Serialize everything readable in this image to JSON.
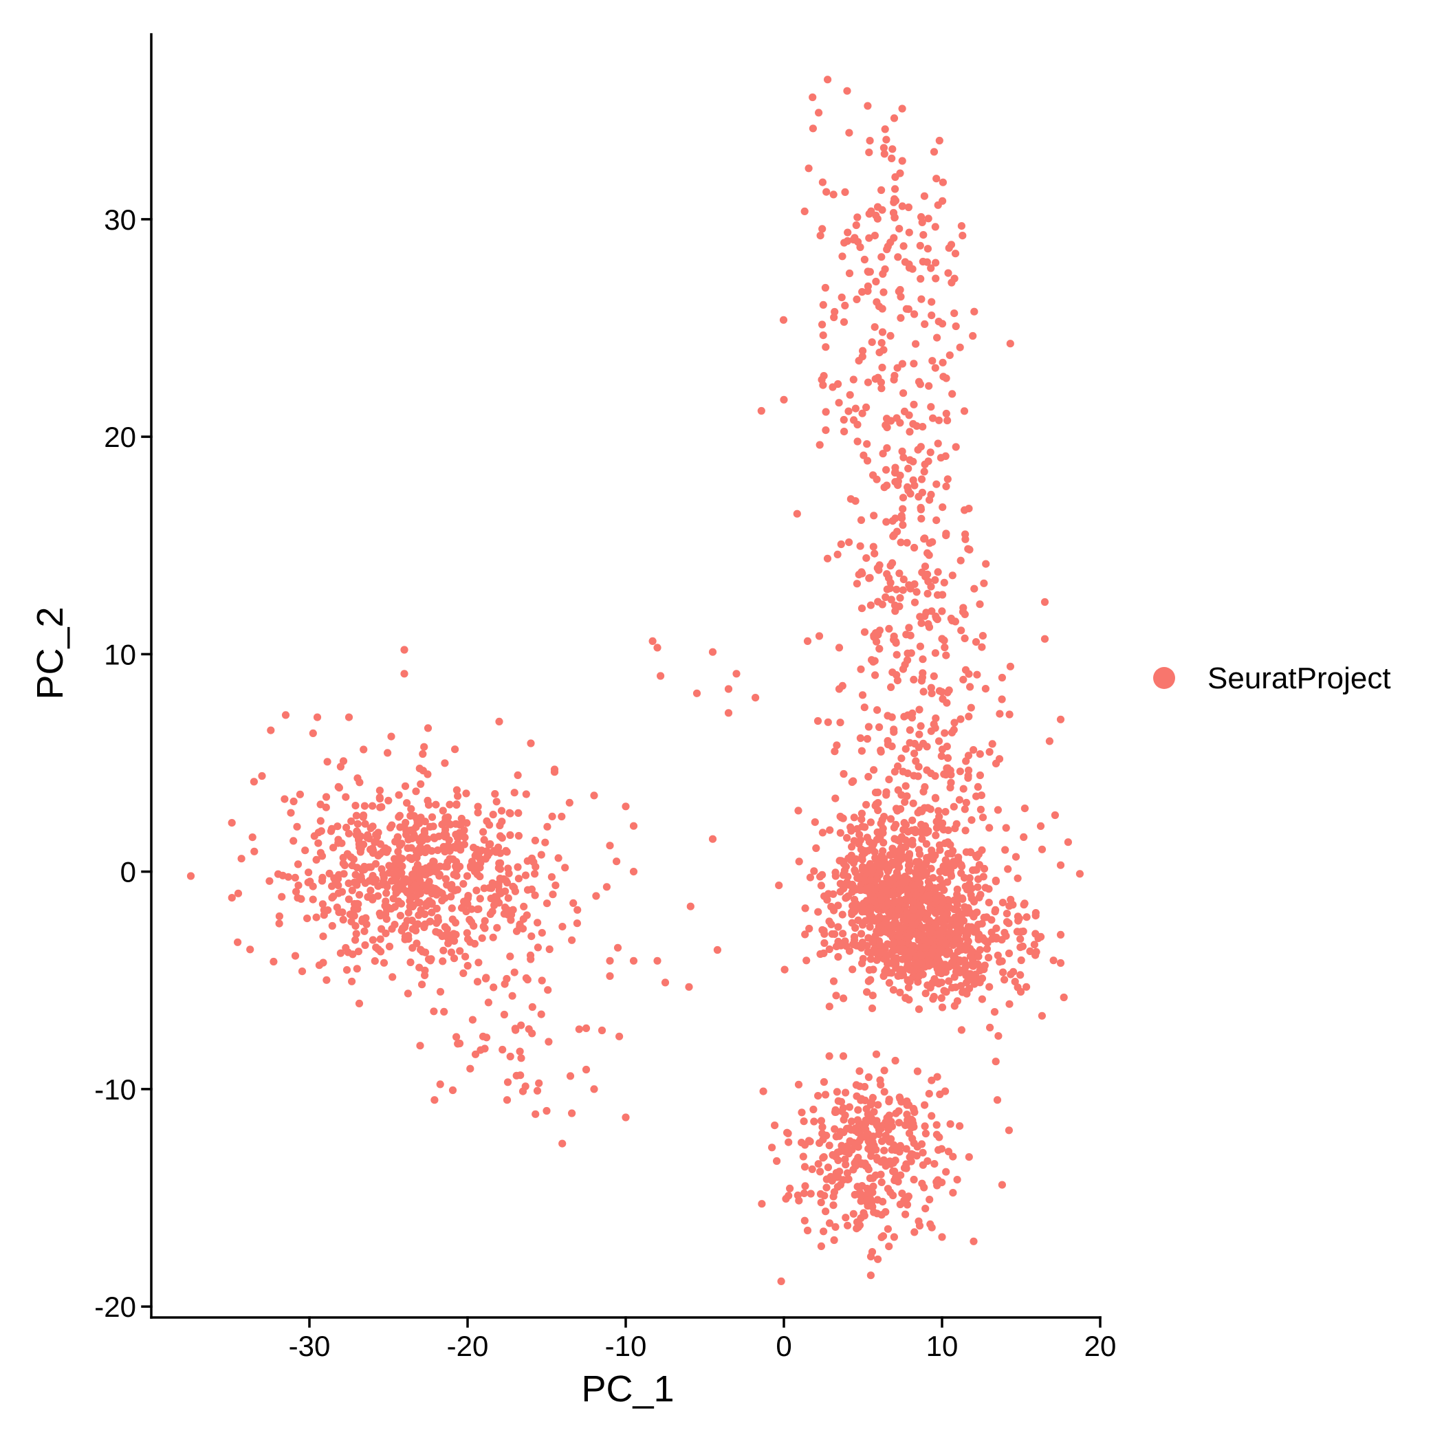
{
  "chart_data": {
    "type": "scatter",
    "xlabel": "PC_1",
    "ylabel": "PC_2",
    "xlim": [
      -40,
      20
    ],
    "ylim": [
      -20.5,
      38.5
    ],
    "x_ticks": [
      -30,
      -20,
      -10,
      0,
      10,
      20
    ],
    "x_tick_labels": [
      "-30",
      "-20",
      "-10",
      "0",
      "10",
      "20"
    ],
    "y_ticks": [
      -20,
      -10,
      0,
      10,
      20,
      30
    ],
    "y_tick_labels": [
      "-20",
      "-10",
      "0",
      "10",
      "20",
      "30"
    ],
    "grid": false,
    "legend_position": "right",
    "series": [
      {
        "name": "SeuratProject",
        "color": "#F8766D"
      }
    ],
    "clusters": [
      {
        "cx": -24,
        "cy": -0.3,
        "sx": 3.6,
        "sy": 2.1,
        "n": 600
      },
      {
        "cx": -18,
        "cy": 0.0,
        "sx": 3.0,
        "sy": 2.4,
        "n": 120
      },
      {
        "cx": -17,
        "cy": -7.0,
        "sx": 2.6,
        "sy": 2.2,
        "n": 45
      },
      {
        "cx": 8.0,
        "cy": -2.0,
        "sx": 2.4,
        "sy": 1.6,
        "n": 500
      },
      {
        "cx": 9.5,
        "cy": -3.5,
        "sx": 1.8,
        "sy": 1.1,
        "n": 280
      },
      {
        "cx": 6.0,
        "cy": -0.3,
        "sx": 1.8,
        "sy": 1.5,
        "n": 200
      },
      {
        "cx": 8.5,
        "cy": 2.0,
        "sx": 3.3,
        "sy": 3.2,
        "n": 250
      },
      {
        "cx": 5.5,
        "cy": -12.8,
        "sx": 2.5,
        "sy": 2.0,
        "n": 360
      },
      {
        "cx": 8.5,
        "cy": 11.0,
        "sx": 2.4,
        "sy": 3.5,
        "n": 180
      },
      {
        "cx": 7.5,
        "cy": 19.0,
        "sx": 2.2,
        "sy": 4.5,
        "n": 150
      },
      {
        "cx": 6.5,
        "cy": 28.0,
        "sx": 2.5,
        "sy": 3.6,
        "n": 150
      },
      {
        "cx": 14.0,
        "cy": -3.5,
        "sx": 1.6,
        "sy": 1.2,
        "n": 60
      }
    ],
    "points": [
      [
        -37.5,
        -0.2
      ],
      [
        -34.5,
        -1.0
      ],
      [
        -34.3,
        0.6
      ],
      [
        -33.0,
        4.4
      ],
      [
        -31.5,
        7.2
      ],
      [
        -29.5,
        7.1
      ],
      [
        -27.5,
        7.1
      ],
      [
        -24.0,
        10.2
      ],
      [
        -24.0,
        9.1
      ],
      [
        -22.5,
        6.6
      ],
      [
        -18.0,
        6.9
      ],
      [
        -16.0,
        5.9
      ],
      [
        -14.5,
        4.7
      ],
      [
        -12.0,
        3.5
      ],
      [
        -10.0,
        3.0
      ],
      [
        -9.5,
        2.1
      ],
      [
        -11.0,
        1.2
      ],
      [
        -9.5,
        0.0
      ],
      [
        -11.2,
        -0.7
      ],
      [
        -10.5,
        -3.5
      ],
      [
        -11.0,
        -4.1
      ],
      [
        -11.0,
        -4.8
      ],
      [
        -9.5,
        -4.1
      ],
      [
        -7.5,
        -5.1
      ],
      [
        -8.0,
        -4.1
      ],
      [
        -6.0,
        -5.3
      ],
      [
        -12.5,
        -7.2
      ],
      [
        -11.5,
        -7.3
      ],
      [
        -12.5,
        -9.1
      ],
      [
        -13.5,
        -9.4
      ],
      [
        -12.0,
        -10.0
      ],
      [
        -10.0,
        -11.3
      ],
      [
        -16.5,
        -10.1
      ],
      [
        -17.5,
        -10.5
      ],
      [
        -15.0,
        -11.0
      ],
      [
        -23.0,
        -8.0
      ],
      [
        -20.5,
        -7.9
      ],
      [
        -19.5,
        -8.4
      ],
      [
        -8.3,
        10.6
      ],
      [
        -8.0,
        10.3
      ],
      [
        -7.8,
        9.0
      ],
      [
        -4.5,
        10.1
      ],
      [
        -5.5,
        8.2
      ],
      [
        -3.5,
        8.4
      ],
      [
        -3.0,
        9.1
      ],
      [
        -3.5,
        7.3
      ],
      [
        -1.8,
        8.0
      ],
      [
        -4.5,
        1.5
      ],
      [
        -5.9,
        -1.6
      ],
      [
        -4.2,
        -3.6
      ],
      [
        0.0,
        21.7
      ],
      [
        1.5,
        10.6
      ],
      [
        3.5,
        8.4
      ],
      [
        3.5,
        10.3
      ],
      [
        2.2,
        34.9
      ],
      [
        4.0,
        35.9
      ],
      [
        9.5,
        33.1
      ],
      [
        16.5,
        12.4
      ],
      [
        16.5,
        10.7
      ],
      [
        17.5,
        7.0
      ],
      [
        16.8,
        6.0
      ],
      [
        17.5,
        0.3
      ],
      [
        17.5,
        -2.9
      ],
      [
        17.5,
        -4.2
      ],
      [
        13.5,
        -10.5
      ],
      [
        13.8,
        -14.4
      ],
      [
        12.0,
        -17.0
      ],
      [
        -1.3,
        -10.1
      ],
      [
        0.2,
        -12.0
      ],
      [
        1.5,
        -16.5
      ],
      [
        5.5,
        -17.7
      ],
      [
        10.0,
        -16.8
      ]
    ]
  },
  "legend": {
    "items": [
      {
        "label": "SeuratProject",
        "color": "#F8766D"
      }
    ]
  }
}
